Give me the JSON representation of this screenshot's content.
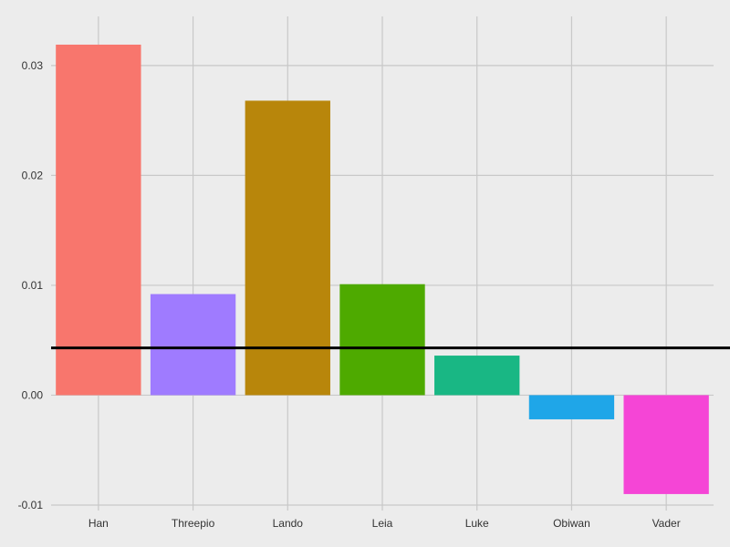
{
  "chart_data": {
    "type": "bar",
    "title": "",
    "xlabel": "",
    "ylabel": "",
    "categories": [
      "Han",
      "Threepio",
      "Lando",
      "Leia",
      "Luke",
      "Obiwan",
      "Vader"
    ],
    "values": [
      0.0319,
      0.0092,
      0.0268,
      0.0101,
      0.0036,
      -0.0022,
      -0.009
    ],
    "colors": [
      "#F8766D",
      "#9F7BFF",
      "#B8860B",
      "#4EAA00",
      "#19B784",
      "#1FA6E8",
      "#F545D6"
    ],
    "ylim": [
      -0.0105,
      0.0353
    ],
    "yticks": [
      -0.01,
      0.0,
      0.01,
      0.02,
      0.03
    ],
    "ytick_labels": [
      "-0.01",
      "0.00",
      "0.01",
      "0.02",
      "0.03"
    ],
    "reference_line": {
      "y": 0.0043,
      "color": "#000000"
    },
    "grid": true,
    "legend": "none",
    "background": "#ECECEC"
  }
}
